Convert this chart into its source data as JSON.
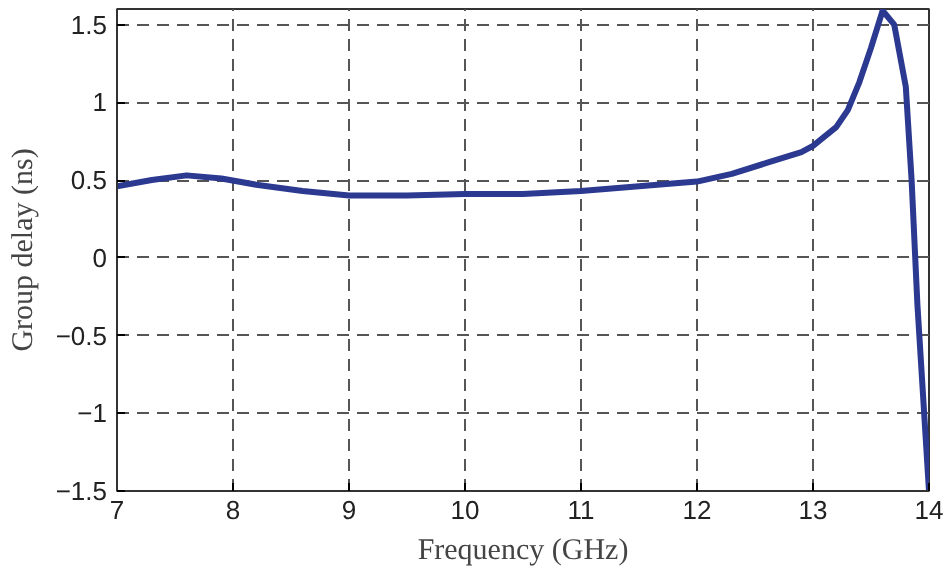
{
  "chart_data": {
    "type": "line",
    "xlabel": "Frequency (GHz)",
    "ylabel": "Group delay (ns)",
    "x": [
      7,
      7.3,
      7.6,
      7.9,
      8.2,
      8.6,
      9,
      9.5,
      10,
      10.5,
      11,
      11.5,
      12,
      12.3,
      12.6,
      12.9,
      13,
      13.2,
      13.3,
      13.4,
      13.5,
      13.6,
      13.7,
      13.8,
      13.85,
      13.9,
      14
    ],
    "series": [
      {
        "color": "#2b3990",
        "values": [
          0.46,
          0.5,
          0.53,
          0.51,
          0.47,
          0.43,
          0.4,
          0.4,
          0.41,
          0.41,
          0.43,
          0.46,
          0.49,
          0.54,
          0.61,
          0.68,
          0.72,
          0.84,
          0.95,
          1.13,
          1.35,
          1.59,
          1.5,
          1.1,
          0.5,
          -0.3,
          -1.5
        ]
      }
    ],
    "xlim": [
      7,
      14
    ],
    "ylim": [
      -1.5,
      1.6
    ],
    "xticks": [
      7,
      8,
      9,
      10,
      11,
      12,
      13,
      14
    ],
    "yticks": [
      {
        "value": -1.5,
        "label": "−1.5"
      },
      {
        "value": -1,
        "label": "−1"
      },
      {
        "value": -0.5,
        "label": "−0.5"
      },
      0,
      0.5,
      1,
      1.5
    ],
    "grid": true,
    "line_style": "solid",
    "marker": "none"
  }
}
